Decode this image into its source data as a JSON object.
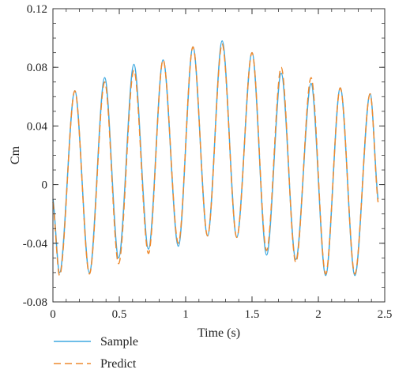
{
  "chart_data": {
    "type": "line",
    "title": "",
    "xlabel": "Time (s)",
    "ylabel": "Cm",
    "xlim": [
      0,
      2.5
    ],
    "ylim": [
      -0.08,
      0.12
    ],
    "xticks": [
      0,
      0.5,
      1,
      1.5,
      2,
      2.5
    ],
    "xtick_labels": [
      "0",
      "0.5",
      "1",
      "1.5",
      "2",
      "2.5"
    ],
    "yticks": [
      -0.08,
      -0.04,
      0,
      0.04,
      0.08,
      0.12
    ],
    "ytick_labels": [
      "-0.08",
      "-0.04",
      "0",
      "0.04",
      "0.08",
      "0.12"
    ],
    "grid": false,
    "legend_position": "bottom-left",
    "series": [
      {
        "name": "Sample",
        "color": "#3fa9e0",
        "style": "solid",
        "x": [
          0,
          0.05,
          0.165,
          0.275,
          0.39,
          0.495,
          0.61,
          0.72,
          0.83,
          0.945,
          1.055,
          1.165,
          1.275,
          1.385,
          1.5,
          1.61,
          1.72,
          1.83,
          1.945,
          2.055,
          2.165,
          2.275,
          2.39,
          2.45
        ],
        "y": [
          -0.01,
          -0.06,
          0.064,
          -0.06,
          0.073,
          -0.05,
          0.082,
          -0.044,
          0.085,
          -0.042,
          0.094,
          -0.035,
          0.098,
          -0.036,
          0.09,
          -0.048,
          0.076,
          -0.051,
          0.069,
          -0.062,
          0.066,
          -0.062,
          0.062,
          -0.01
        ]
      },
      {
        "name": "Predict",
        "color": "#ee8a2e",
        "style": "dashed",
        "x": [
          0,
          0.05,
          0.165,
          0.275,
          0.39,
          0.495,
          0.61,
          0.72,
          0.83,
          0.945,
          1.055,
          1.165,
          1.275,
          1.385,
          1.5,
          1.61,
          1.72,
          1.83,
          1.945,
          2.055,
          2.165,
          2.275,
          2.39,
          2.45
        ],
        "y": [
          -0.012,
          -0.062,
          0.064,
          -0.061,
          0.07,
          -0.054,
          0.078,
          -0.047,
          0.085,
          -0.04,
          0.094,
          -0.035,
          0.096,
          -0.036,
          0.09,
          -0.045,
          0.08,
          -0.053,
          0.073,
          -0.061,
          0.066,
          -0.061,
          0.062,
          -0.012
        ]
      }
    ]
  }
}
